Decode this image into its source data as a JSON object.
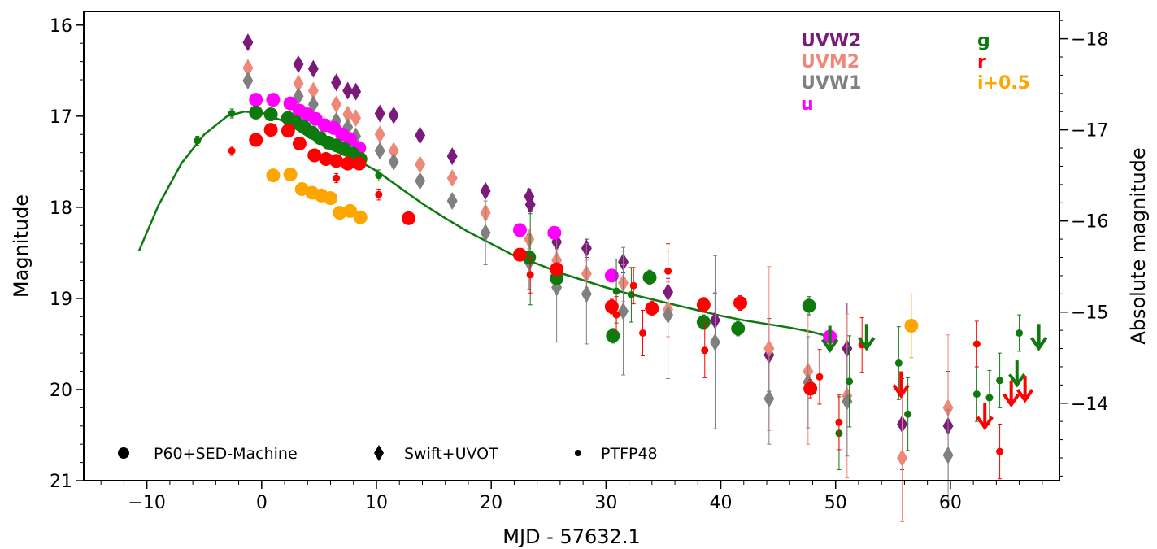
{
  "chart_data": {
    "type": "scatter",
    "xlabel": "MJD - 57632.1",
    "ylabel": "Magnitude",
    "ylabel_right": "Absolute magnitude",
    "xlim": [
      -15.5,
      69.5
    ],
    "ylim": [
      21,
      15.85
    ],
    "ylim_right": [
      -13.15,
      -18.3
    ],
    "x_ticks": [
      -10,
      0,
      10,
      20,
      30,
      40,
      50,
      60
    ],
    "y_ticks": [
      16,
      17,
      18,
      19,
      20,
      21
    ],
    "y_ticks_right": [
      -18,
      -17,
      -16,
      -15,
      -14
    ],
    "x_tick_labels": [
      "−10",
      "0",
      "10",
      "20",
      "30",
      "40",
      "50",
      "60"
    ],
    "y_tick_labels": [
      "16",
      "17",
      "18",
      "19",
      "20",
      "21"
    ],
    "y_tick_labels_right": [
      "−18",
      "−17",
      "−16",
      "−15",
      "−14"
    ],
    "grid": false,
    "legend_bands": [
      {
        "label": "UVW2",
        "color": "#7b1a7b"
      },
      {
        "label": "UVM2",
        "color": "#f08878"
      },
      {
        "label": "UVW1",
        "color": "#808080"
      },
      {
        "label": "u",
        "color": "#ff00ff"
      },
      {
        "label": "g",
        "color": "#0e7a0e"
      },
      {
        "label": "r",
        "color": "#ff0000"
      },
      {
        "label": "i+0.5",
        "color": "#ffa500"
      }
    ],
    "legend_markers": [
      {
        "label": "P60+SED-Machine",
        "marker": "circle"
      },
      {
        "label": "Swift+UVOT",
        "marker": "diamond"
      },
      {
        "label": "PTFP48",
        "marker": "dot"
      }
    ],
    "model_curve": {
      "band": "g",
      "color": "#0e7a0e",
      "x": [
        -10.7,
        -9,
        -7,
        -5,
        -3,
        -1.5,
        0,
        2,
        4,
        6,
        8,
        9,
        10,
        12,
        14,
        16,
        18,
        20,
        22,
        24,
        26,
        28,
        30,
        32,
        34,
        36,
        38,
        40,
        42,
        44,
        46,
        48,
        49.5
      ],
      "y": [
        18.48,
        17.98,
        17.52,
        17.2,
        17.0,
        16.95,
        16.96,
        17.06,
        17.22,
        17.36,
        17.47,
        17.53,
        17.6,
        17.78,
        17.96,
        18.12,
        18.27,
        18.4,
        18.53,
        18.62,
        18.72,
        18.8,
        18.88,
        18.95,
        19.01,
        19.07,
        19.13,
        19.19,
        19.24,
        19.28,
        19.32,
        19.37,
        19.42
      ]
    },
    "series": [
      {
        "name": "UVW2",
        "instrument": "Swift+UVOT",
        "marker": "diamond",
        "color": "#7b1a7b",
        "x": [
          -1.2,
          3.2,
          4.5,
          6.5,
          7.5,
          8.2,
          10.3,
          11.5,
          13.8,
          16.6,
          19.5,
          23.3,
          23.4,
          25.7,
          28.3,
          31.5,
          35.4,
          39.5,
          44.2,
          51.0,
          55.8,
          59.8
        ],
        "y": [
          16.19,
          16.43,
          16.48,
          16.63,
          16.72,
          16.73,
          16.97,
          16.99,
          17.21,
          17.44,
          17.82,
          17.88,
          17.97,
          18.38,
          18.45,
          18.6,
          18.93,
          19.24,
          19.62,
          19.55,
          20.38,
          20.4
        ],
        "err": [
          0.05,
          0.05,
          0.05,
          0.05,
          0.05,
          0.05,
          0.05,
          0.05,
          0.05,
          0.06,
          0.06,
          0.08,
          0.08,
          0.1,
          0.1,
          0.12,
          0.15,
          0.3,
          0.4,
          0.5,
          0.5,
          0.6
        ]
      },
      {
        "name": "UVM2",
        "instrument": "Swift+UVOT",
        "marker": "diamond",
        "color": "#f08878",
        "x": [
          -1.2,
          3.2,
          4.5,
          6.5,
          7.5,
          8.2,
          10.3,
          11.5,
          13.8,
          16.6,
          19.5,
          23.3,
          25.7,
          28.3,
          31.5,
          35.4,
          44.2,
          47.6,
          51.0,
          55.8,
          59.8
        ],
        "y": [
          16.47,
          16.64,
          16.72,
          16.87,
          16.98,
          17.02,
          17.2,
          17.38,
          17.53,
          17.68,
          18.06,
          18.35,
          18.58,
          18.73,
          18.83,
          19.12,
          19.55,
          19.8,
          20.07,
          20.75,
          20.2
        ],
        "err": [
          0.05,
          0.05,
          0.05,
          0.05,
          0.05,
          0.05,
          0.05,
          0.05,
          0.06,
          0.06,
          0.07,
          0.1,
          0.12,
          0.15,
          0.2,
          0.3,
          0.9,
          0.8,
          0.9,
          0.7,
          0.8
        ]
      },
      {
        "name": "UVW1",
        "instrument": "Swift+UVOT",
        "marker": "diamond",
        "color": "#808080",
        "x": [
          -1.2,
          3.2,
          4.5,
          6.5,
          7.5,
          8.2,
          10.3,
          11.5,
          13.8,
          16.6,
          19.5,
          23.3,
          25.7,
          28.3,
          31.5,
          35.4,
          39.5,
          44.2,
          47.6,
          51.0,
          59.8
        ],
        "y": [
          16.61,
          16.78,
          16.87,
          17.05,
          17.12,
          17.22,
          17.38,
          17.5,
          17.71,
          17.93,
          18.28,
          18.6,
          18.88,
          18.95,
          19.14,
          19.18,
          19.48,
          20.1,
          19.92,
          20.13,
          20.72
        ],
        "err": [
          0.05,
          0.05,
          0.05,
          0.05,
          0.05,
          0.05,
          0.05,
          0.05,
          0.06,
          0.06,
          0.35,
          0.3,
          0.6,
          0.55,
          0.7,
          0.7,
          0.95,
          0.5,
          0.5,
          0.6,
          0.5
        ]
      },
      {
        "name": "u",
        "instrument": "P60+SED-Machine",
        "marker": "circle",
        "color": "#ff00ff",
        "x": [
          -0.5,
          1.0,
          2.5,
          3.3,
          4.0,
          4.7,
          5.5,
          6.3,
          7.0,
          7.7,
          8.5,
          22.5,
          25.5,
          30.5,
          49.5
        ],
        "y": [
          16.82,
          16.82,
          16.86,
          16.94,
          16.98,
          17.03,
          17.1,
          17.13,
          17.2,
          17.25,
          17.35,
          18.25,
          18.28,
          18.75,
          19.42
        ],
        "err": [
          0.03,
          0.03,
          0.03,
          0.03,
          0.03,
          0.03,
          0.03,
          0.03,
          0.03,
          0.03,
          0.03,
          0.04,
          0.04,
          0.05,
          0.05
        ]
      },
      {
        "name": "g",
        "instrument": "P60+SED-Machine",
        "marker": "circle",
        "color": "#0e7a0e",
        "x": [
          -0.5,
          0.8,
          2.3,
          3.0,
          3.7,
          4.4,
          5.1,
          5.8,
          6.5,
          7.2,
          7.9,
          8.6,
          23.3,
          25.7,
          30.6,
          33.8,
          38.5,
          41.5,
          47.7
        ],
        "y": [
          16.96,
          16.98,
          17.02,
          17.07,
          17.12,
          17.18,
          17.24,
          17.29,
          17.32,
          17.36,
          17.41,
          17.47,
          18.55,
          18.78,
          19.41,
          18.77,
          19.26,
          19.33,
          19.08
        ],
        "err": [
          0.03,
          0.03,
          0.03,
          0.03,
          0.03,
          0.03,
          0.03,
          0.03,
          0.03,
          0.03,
          0.03,
          0.03,
          0.06,
          0.06,
          0.08,
          0.08,
          0.08,
          0.08,
          0.1
        ]
      },
      {
        "name": "r",
        "instrument": "P60+SED-Machine",
        "marker": "circle",
        "color": "#ff0000",
        "x": [
          -0.5,
          0.8,
          2.3,
          3.3,
          4.6,
          5.6,
          6.5,
          7.5,
          8.5,
          12.8,
          22.5,
          25.7,
          30.5,
          34.0,
          38.5,
          41.7,
          47.8
        ],
        "y": [
          17.26,
          17.15,
          17.16,
          17.3,
          17.43,
          17.47,
          17.49,
          17.52,
          17.52,
          18.12,
          18.52,
          18.68,
          19.09,
          19.11,
          19.07,
          19.05,
          19.99
        ],
        "err": [
          0.04,
          0.04,
          0.04,
          0.04,
          0.04,
          0.04,
          0.04,
          0.04,
          0.04,
          0.05,
          0.06,
          0.07,
          0.08,
          0.08,
          0.08,
          0.08,
          0.1
        ]
      },
      {
        "name": "i+0.5",
        "instrument": "P60+SED-Machine",
        "marker": "circle",
        "color": "#ffa500",
        "x": [
          1.0,
          2.5,
          3.5,
          4.4,
          5.2,
          6.0,
          6.8,
          7.7,
          8.6,
          56.6
        ],
        "y": [
          17.65,
          17.64,
          17.8,
          17.84,
          17.87,
          17.9,
          18.06,
          18.04,
          18.11,
          19.3
        ],
        "err": [
          0.04,
          0.04,
          0.04,
          0.04,
          0.04,
          0.04,
          0.04,
          0.04,
          0.04,
          0.35
        ]
      },
      {
        "name": "g",
        "instrument": "PTFP48",
        "marker": "dot",
        "color": "#0e7a0e",
        "x": [
          -5.6,
          -2.6,
          10.2,
          23.4,
          30.9,
          32.2,
          50.3,
          51.2,
          55.5,
          56.3,
          62.3,
          63.4,
          64.3,
          66.0
        ],
        "y": [
          17.27,
          16.97,
          17.65,
          18.57,
          18.92,
          18.96,
          20.48,
          19.91,
          19.71,
          20.27,
          20.05,
          20.09,
          19.9,
          19.38
        ],
        "err": [
          0.05,
          0.05,
          0.06,
          0.5,
          0.35,
          0.3,
          0.4,
          0.5,
          0.4,
          0.4,
          0.3,
          0.3,
          0.3,
          0.2
        ]
      },
      {
        "name": "r",
        "instrument": "PTFP48",
        "marker": "dot",
        "color": "#ff0000",
        "x": [
          -2.6,
          6.5,
          10.2,
          23.4,
          30.9,
          32.4,
          33.2,
          35.4,
          38.6,
          48.6,
          50.3,
          52.3,
          62.3,
          64.3
        ],
        "y": [
          17.38,
          17.68,
          17.86,
          18.74,
          19.18,
          18.86,
          19.38,
          18.7,
          19.57,
          19.86,
          20.36,
          19.51,
          19.5,
          20.68
        ],
        "err": [
          0.05,
          0.05,
          0.06,
          0.2,
          0.2,
          0.2,
          0.25,
          0.3,
          0.3,
          0.3,
          0.3,
          0.3,
          0.25,
          0.3
        ]
      }
    ],
    "upper_limits": [
      {
        "band": "g",
        "color": "#0e7a0e",
        "x": [
          49.5,
          52.7,
          65.8,
          67.7
        ],
        "y": [
          19.3,
          19.28,
          19.68,
          19.28
        ]
      },
      {
        "band": "r",
        "color": "#ff0000",
        "x": [
          55.7,
          63.0,
          65.3,
          66.5
        ],
        "y": [
          19.8,
          20.15,
          19.9,
          19.85
        ]
      }
    ]
  }
}
